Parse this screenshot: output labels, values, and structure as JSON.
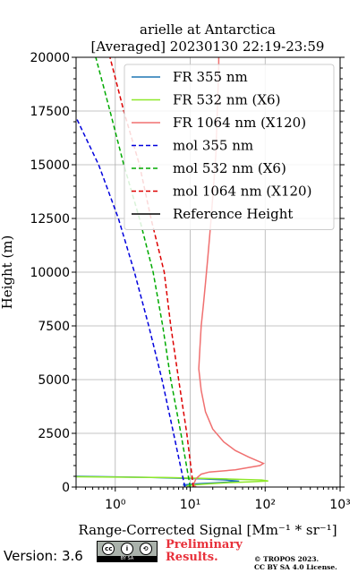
{
  "chart_data": {
    "type": "line",
    "title": "arielle at Antarctica",
    "subtitle": "[Averaged] 20230130 22:19-23:59",
    "xlabel": "Range-Corrected Signal [Mm⁻¹ * sr⁻¹]",
    "ylabel": "Height (m)",
    "xscale": "log",
    "xlim": [
      0.3,
      1000
    ],
    "ylim": [
      0,
      20000
    ],
    "x_tick_labels": [
      "10⁰",
      "10¹",
      "10²",
      "10³"
    ],
    "x_tick_values": [
      1,
      10,
      100,
      1000
    ],
    "y_ticks": [
      0,
      2500,
      5000,
      7500,
      10000,
      12500,
      15000,
      17500,
      20000
    ],
    "grid": true,
    "legend_position": "top-right",
    "series": [
      {
        "name": "FR 355 nm",
        "color": "#1f77b4",
        "style": "solid",
        "points": [
          [
            0.3,
            500
          ],
          [
            3,
            450
          ],
          [
            15,
            380
          ],
          [
            30,
            330
          ],
          [
            45,
            270
          ],
          [
            25,
            210
          ],
          [
            12,
            150
          ],
          [
            8,
            100
          ],
          [
            10,
            50
          ]
        ]
      },
      {
        "name": "FR 532 nm (X6)",
        "color": "#8fe82a",
        "style": "solid",
        "points": [
          [
            0.3,
            480
          ],
          [
            5,
            440
          ],
          [
            30,
            380
          ],
          [
            90,
            330
          ],
          [
            110,
            280
          ],
          [
            60,
            240
          ],
          [
            30,
            200
          ],
          [
            18,
            150
          ],
          [
            11,
            100
          ],
          [
            9,
            50
          ]
        ]
      },
      {
        "name": "FR 1064 nm (X120)",
        "color": "#f07070",
        "style": "solid",
        "points": [
          [
            12,
            0
          ],
          [
            11,
            100
          ],
          [
            12,
            400
          ],
          [
            14,
            600
          ],
          [
            18,
            700
          ],
          [
            40,
            800
          ],
          [
            85,
            1000
          ],
          [
            95,
            1100
          ],
          [
            60,
            1400
          ],
          [
            40,
            1700
          ],
          [
            28,
            2100
          ],
          [
            20,
            2700
          ],
          [
            16,
            3500
          ],
          [
            14,
            4500
          ],
          [
            13,
            5500
          ],
          [
            13.5,
            6500
          ],
          [
            14,
            7500
          ],
          [
            15,
            8500
          ],
          [
            16,
            9500
          ],
          [
            17,
            10500
          ],
          [
            18,
            11500
          ],
          [
            19,
            12500
          ],
          [
            20,
            13500
          ],
          [
            21,
            14500
          ],
          [
            22,
            15500
          ],
          [
            22.5,
            16500
          ],
          [
            23,
            17500
          ],
          [
            23.5,
            18500
          ],
          [
            24,
            19500
          ],
          [
            24,
            20000
          ]
        ]
      },
      {
        "name": "mol 355 nm",
        "color": "#0000dd",
        "style": "dashed",
        "points": [
          [
            8.5,
            0
          ],
          [
            6,
            2500
          ],
          [
            4.2,
            5000
          ],
          [
            2.8,
            7500
          ],
          [
            1.8,
            10000
          ],
          [
            1.1,
            12500
          ],
          [
            0.6,
            15000
          ],
          [
            0.3,
            17200
          ]
        ]
      },
      {
        "name": "mol 532 nm (X6)",
        "color": "#00aa00",
        "style": "dashed",
        "points": [
          [
            10,
            0
          ],
          [
            7.5,
            2500
          ],
          [
            5.5,
            5000
          ],
          [
            4.3,
            7500
          ],
          [
            3.2,
            10000
          ],
          [
            2.1,
            12500
          ],
          [
            1.3,
            15000
          ],
          [
            0.85,
            17500
          ],
          [
            0.55,
            20000
          ]
        ]
      },
      {
        "name": "mol 1064 nm (X120)",
        "color": "#dd0000",
        "style": "dashed",
        "points": [
          [
            11,
            0
          ],
          [
            9,
            2500
          ],
          [
            7,
            5000
          ],
          [
            5.5,
            7500
          ],
          [
            4.5,
            10000
          ],
          [
            3,
            12500
          ],
          [
            2.1,
            15000
          ],
          [
            1.3,
            17500
          ],
          [
            0.85,
            20000
          ]
        ]
      },
      {
        "name": "Reference Height",
        "color": "#000000",
        "style": "solid",
        "points": []
      }
    ]
  },
  "footer": {
    "version": "Version: 3.6",
    "license_badge": "BY SA",
    "preliminary": "Preliminary Results.",
    "copyright_line1": "© TROPOS 2023.",
    "copyright_line2": "CC BY SA 4.0 License."
  }
}
